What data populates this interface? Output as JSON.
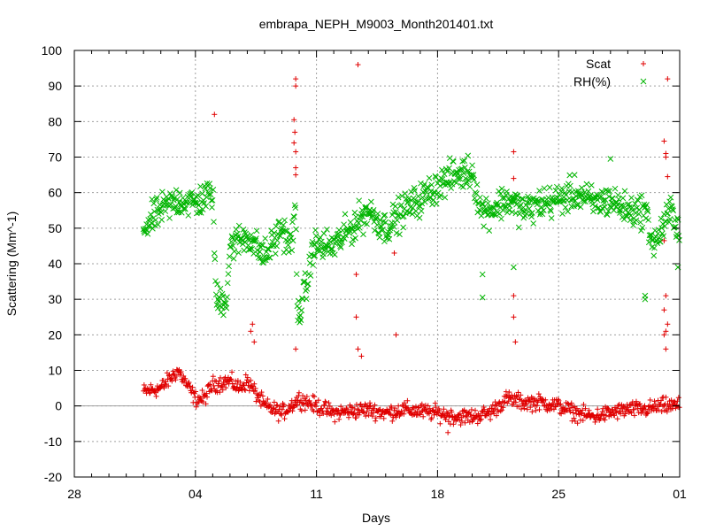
{
  "chart_data": {
    "type": "scatter",
    "title": "embrapa_NEPH_M9003_Month201401.txt",
    "xlabel": "Days",
    "ylabel": "Scattering (Mm^-1)",
    "xlim": [
      28,
      63
    ],
    "ylim": [
      -20,
      100
    ],
    "grid": true,
    "legend_position": "top-right",
    "x_tick_values": [
      28,
      35,
      42,
      49,
      56,
      63
    ],
    "x_tick_labels": [
      "28",
      "04",
      "11",
      "18",
      "25",
      "01"
    ],
    "y_ticks": [
      -20,
      -10,
      0,
      10,
      20,
      30,
      40,
      50,
      60,
      70,
      80,
      90,
      100
    ],
    "zero_line": true,
    "series": [
      {
        "name": "Scat",
        "marker": "plus",
        "color": "#e00000",
        "x_range": [
          32.0,
          63.0
        ],
        "baseline": [
          [
            32.0,
            4
          ],
          [
            33.0,
            5
          ],
          [
            34.0,
            10
          ],
          [
            34.5,
            6
          ],
          [
            35.0,
            2
          ],
          [
            35.5,
            2
          ],
          [
            36.0,
            6
          ],
          [
            37.0,
            7
          ],
          [
            37.5,
            5
          ],
          [
            38.0,
            7
          ],
          [
            39.0,
            0
          ],
          [
            40.0,
            -2
          ],
          [
            41.0,
            2
          ],
          [
            42.0,
            0
          ],
          [
            43.0,
            -2
          ],
          [
            45.0,
            -1
          ],
          [
            46.0,
            -2
          ],
          [
            47.0,
            -1
          ],
          [
            49.0,
            -2
          ],
          [
            50.0,
            -3
          ],
          [
            51.0,
            -3
          ],
          [
            52.0,
            -2
          ],
          [
            53.0,
            2
          ],
          [
            54.0,
            1
          ],
          [
            55.0,
            1
          ],
          [
            56.0,
            0
          ],
          [
            57.0,
            -2
          ],
          [
            58.0,
            -3
          ],
          [
            59.0,
            -2
          ],
          [
            60.0,
            -1
          ],
          [
            61.0,
            -1
          ],
          [
            62.0,
            0
          ],
          [
            63.0,
            0
          ]
        ],
        "outliers": [
          [
            36.1,
            82
          ],
          [
            40.8,
            92
          ],
          [
            40.8,
            90
          ],
          [
            40.7,
            80.5
          ],
          [
            40.75,
            77
          ],
          [
            40.7,
            74
          ],
          [
            40.8,
            71.5
          ],
          [
            40.8,
            67
          ],
          [
            40.8,
            65
          ],
          [
            40.8,
            16
          ],
          [
            44.4,
            96
          ],
          [
            44.3,
            37
          ],
          [
            44.3,
            25
          ],
          [
            44.4,
            16
          ],
          [
            44.6,
            14
          ],
          [
            46.5,
            43
          ],
          [
            46.6,
            20
          ],
          [
            49.6,
            -7.5
          ],
          [
            53.4,
            71.5
          ],
          [
            53.4,
            64
          ],
          [
            53.4,
            31
          ],
          [
            53.4,
            25
          ],
          [
            53.5,
            18
          ],
          [
            62.3,
            92
          ],
          [
            62.1,
            74.5
          ],
          [
            62.2,
            71
          ],
          [
            62.2,
            70
          ],
          [
            62.3,
            64.5
          ],
          [
            62.1,
            46.5
          ],
          [
            62.2,
            31
          ],
          [
            62.1,
            27
          ],
          [
            62.3,
            23
          ],
          [
            62.2,
            21
          ],
          [
            62.1,
            20
          ],
          [
            62.2,
            16
          ],
          [
            38.3,
            23
          ],
          [
            38.2,
            21
          ],
          [
            38.4,
            18
          ]
        ]
      },
      {
        "name": "RH(%)",
        "marker": "cross",
        "color": "#00b400",
        "x_range": [
          32.0,
          63.0
        ],
        "baseline": [
          [
            32.0,
            50
          ],
          [
            33.0,
            55
          ],
          [
            34.0,
            58
          ],
          [
            35.0,
            57
          ],
          [
            36.0,
            60
          ],
          [
            36.2,
            30
          ],
          [
            36.8,
            30
          ],
          [
            37.0,
            45
          ],
          [
            38.0,
            48
          ],
          [
            39.0,
            42
          ],
          [
            40.0,
            50
          ],
          [
            40.5,
            45
          ],
          [
            40.8,
            55
          ],
          [
            40.9,
            25
          ],
          [
            41.5,
            35
          ],
          [
            41.8,
            45
          ],
          [
            43.0,
            45
          ],
          [
            44.0,
            50
          ],
          [
            45.0,
            55
          ],
          [
            46.0,
            50
          ],
          [
            47.0,
            55
          ],
          [
            48.0,
            58
          ],
          [
            49.0,
            62
          ],
          [
            50.0,
            65
          ],
          [
            51.0,
            66
          ],
          [
            51.5,
            55
          ],
          [
            52.0,
            55
          ],
          [
            53.0,
            58
          ],
          [
            54.0,
            55
          ],
          [
            55.0,
            57
          ],
          [
            56.0,
            58
          ],
          [
            57.0,
            60
          ],
          [
            58.0,
            57
          ],
          [
            59.0,
            58
          ],
          [
            60.0,
            55
          ],
          [
            61.0,
            55
          ],
          [
            61.5,
            45
          ],
          [
            62.0,
            50
          ],
          [
            62.5,
            55
          ],
          [
            63.0,
            50
          ]
        ],
        "outliers": [
          [
            51.6,
            37
          ],
          [
            51.6,
            30.5
          ],
          [
            53.4,
            39
          ],
          [
            61.0,
            31
          ],
          [
            61.0,
            30
          ],
          [
            62.9,
            39
          ],
          [
            59.0,
            69.5
          ],
          [
            41.0,
            25
          ],
          [
            36.3,
            27.5
          ]
        ]
      }
    ]
  }
}
